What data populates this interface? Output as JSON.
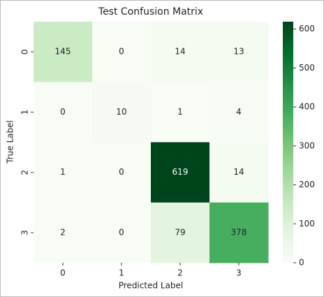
{
  "chart_data": {
    "type": "heatmap",
    "title": "Test Confusion Matrix",
    "xlabel": "Predicted Label",
    "ylabel": "True Label",
    "x_categories": [
      "0",
      "1",
      "2",
      "3"
    ],
    "y_categories": [
      "0",
      "1",
      "2",
      "3"
    ],
    "values": [
      [
        145,
        0,
        14,
        13
      ],
      [
        0,
        10,
        1,
        4
      ],
      [
        1,
        0,
        619,
        14
      ],
      [
        2,
        0,
        79,
        378
      ]
    ],
    "colormap": "Greens",
    "clim": [
      0,
      619
    ],
    "cticks": [
      0,
      100,
      200,
      300,
      400,
      500,
      600
    ]
  }
}
